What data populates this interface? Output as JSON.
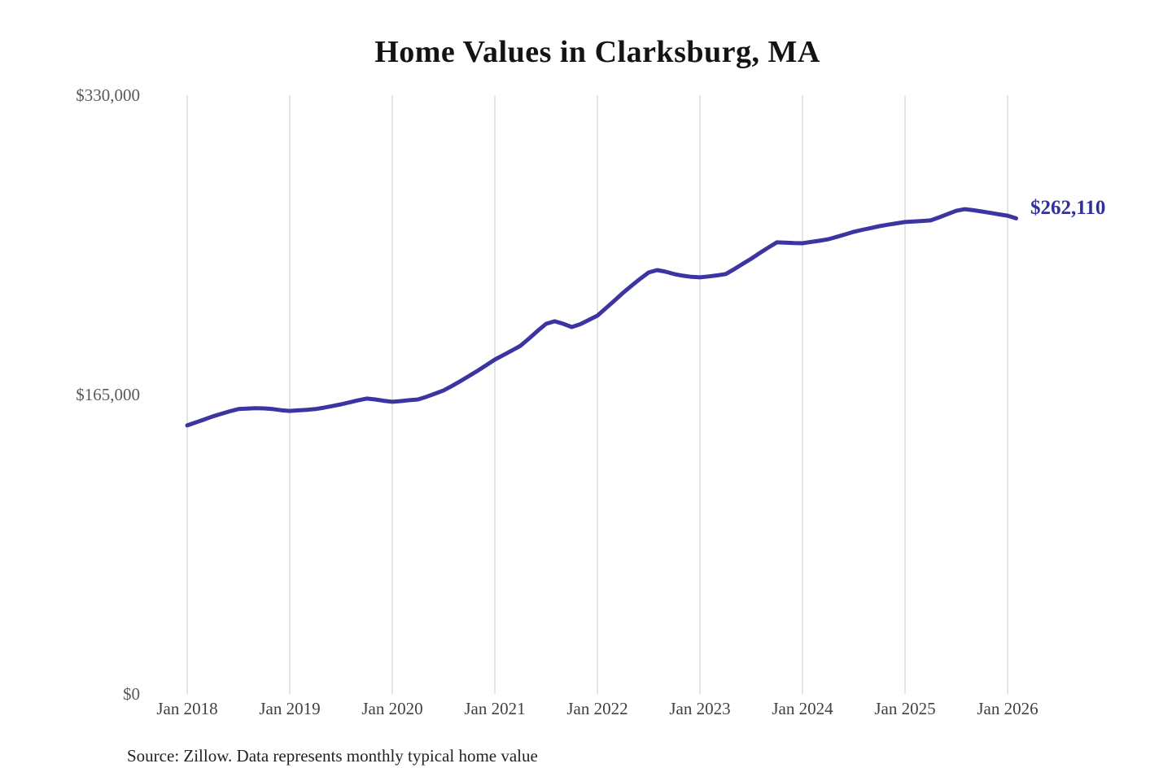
{
  "title": "Home Values in Clarksburg, MA",
  "source_note": "Source: Zillow. Data represents monthly typical home value",
  "colors": {
    "accent_line": "#3b34a1",
    "end_label_text": "#332f9b",
    "gridline": "#c9c9c9",
    "x_axis_text": "#414141",
    "y_axis_text": "#595959",
    "title_text": "#141414",
    "source_text": "#222222"
  },
  "chart_data": {
    "type": "line",
    "title": "Home Values in Clarksburg, MA",
    "xlabel": "",
    "ylabel": "",
    "ylim": [
      0,
      330000
    ],
    "grid": "vertical-only",
    "legend": "none",
    "x_tick_labels": [
      "Jan 2018",
      "Jan 2019",
      "Jan 2020",
      "Jan 2021",
      "Jan 2022",
      "Jan 2023",
      "Jan 2024",
      "Jan 2025",
      "Jan 2026"
    ],
    "y_ticks": [
      {
        "label": "$0",
        "value": 0
      },
      {
        "label": "$165,000",
        "value": 165000
      },
      {
        "label": "$330,000",
        "value": 330000
      }
    ],
    "final_value": 262110,
    "final_value_label": "$262,110",
    "series": [
      {
        "name": "Monthly typical home value",
        "start_month": "2018-01",
        "frequency": "monthly",
        "values": [
          148000,
          149600,
          151300,
          153000,
          154400,
          155800,
          157000,
          157300,
          157500,
          157400,
          157000,
          156400,
          156000,
          156300,
          156600,
          157000,
          157800,
          158700,
          159600,
          160700,
          161800,
          162800,
          162300,
          161600,
          161000,
          161400,
          161900,
          162300,
          163800,
          165500,
          167300,
          169800,
          172500,
          175300,
          178200,
          181200,
          184300,
          186800,
          189300,
          191900,
          195900,
          200100,
          204000,
          205400,
          204000,
          202200,
          203800,
          206100,
          208500,
          212600,
          216800,
          221100,
          225000,
          228800,
          232300,
          233600,
          232700,
          231400,
          230500,
          229900,
          229600,
          230100,
          230700,
          231400,
          234100,
          237000,
          239900,
          243000,
          246000,
          248900,
          248700,
          248500,
          248400,
          249100,
          249800,
          250600,
          251900,
          253300,
          254700,
          255800,
          256800,
          257800,
          258600,
          259400,
          260100,
          260400,
          260700,
          261000,
          262700,
          264500,
          266300,
          267200,
          266600,
          265900,
          265100,
          264300,
          263600,
          262110
        ]
      }
    ]
  }
}
